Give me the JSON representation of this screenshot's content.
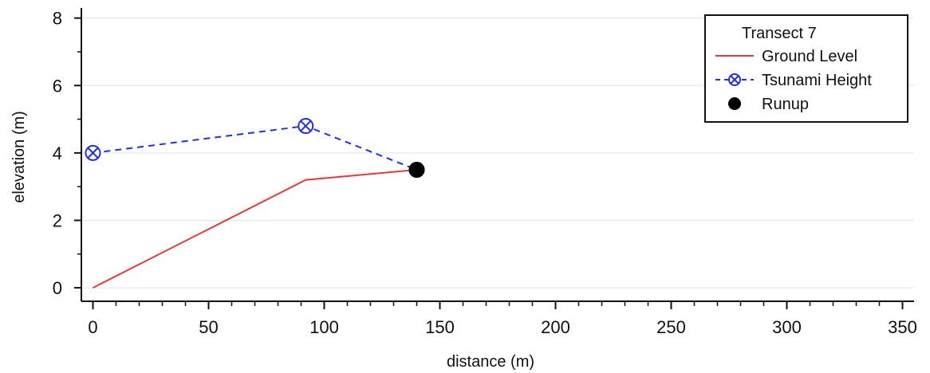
{
  "chart_data": {
    "type": "line",
    "xlabel": "distance (m)",
    "ylabel": "elevation (m)",
    "xlim": [
      -5,
      355
    ],
    "ylim": [
      -0.4,
      8.3
    ],
    "xticks": [
      0,
      50,
      100,
      150,
      200,
      250,
      300,
      350
    ],
    "yticks": [
      0,
      2,
      4,
      6,
      8
    ],
    "grid": "horizontal",
    "legend": {
      "title": "Transect 7",
      "placement": "top-right",
      "entries": [
        "Ground Level",
        "Tsunami Height",
        "Runup"
      ]
    },
    "series": [
      {
        "name": "Ground Level",
        "style": "solid-line",
        "color": "#e8383b",
        "x": [
          0,
          92,
          140
        ],
        "y": [
          0,
          3.2,
          3.5
        ]
      },
      {
        "name": "Tsunami Height",
        "style": "dashed-line-circled-x-markers",
        "color": "#2330e0",
        "x": [
          0,
          92,
          140
        ],
        "y": [
          4.0,
          4.8,
          3.5
        ]
      },
      {
        "name": "Runup",
        "style": "filled-circle-marker",
        "color": "#000000",
        "x": [
          140
        ],
        "y": [
          3.5
        ]
      }
    ]
  }
}
